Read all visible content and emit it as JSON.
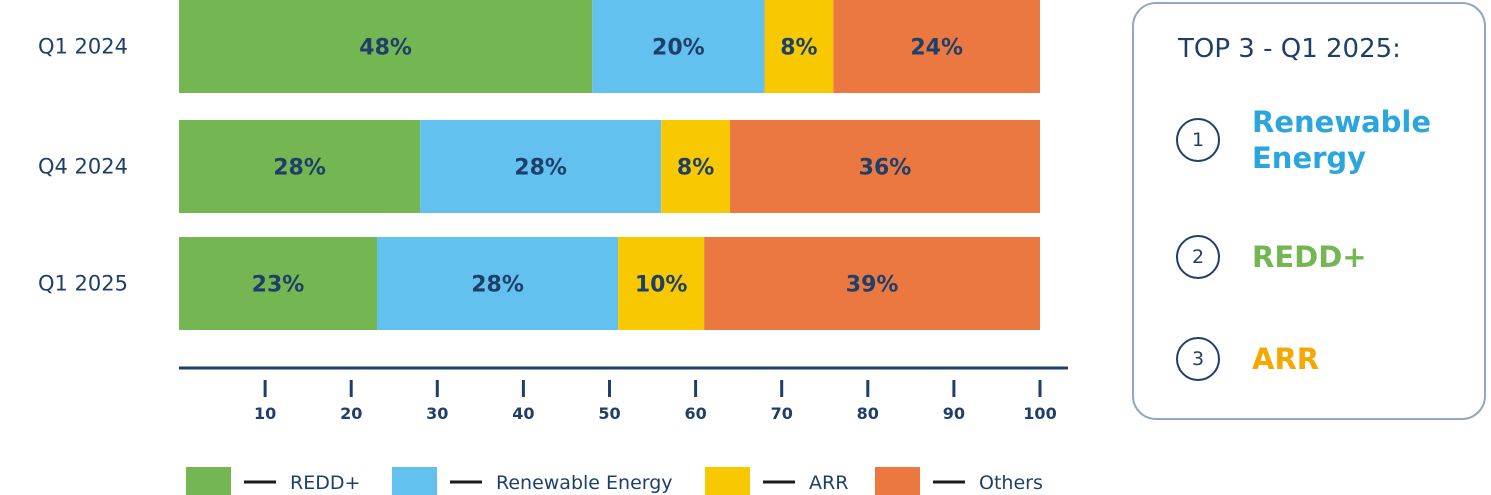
{
  "chart_data": {
    "type": "bar",
    "orientation": "horizontal",
    "stacked": true,
    "categories": [
      "Q1 2024",
      "Q4 2024",
      "Q1 2025"
    ],
    "series": [
      {
        "name": "REDD+",
        "values": [
          48,
          28,
          23
        ],
        "color": "#74b752"
      },
      {
        "name": "Renewable Energy",
        "values": [
          20,
          28,
          28
        ],
        "color": "#62c1ee"
      },
      {
        "name": "ARR",
        "values": [
          8,
          8,
          10
        ],
        "color": "#f8c800"
      },
      {
        "name": "Others",
        "values": [
          24,
          36,
          39
        ],
        "color": "#ea7840"
      }
    ],
    "xticks": [
      10,
      20,
      30,
      40,
      50,
      60,
      70,
      80,
      90,
      100
    ],
    "xlim": [
      0,
      100
    ],
    "grid": false,
    "legend_position": "bottom",
    "label_color": "#1f3f6b"
  },
  "top3": {
    "title": "TOP 3 - Q1 2025:",
    "items": [
      {
        "rank": "1",
        "name": "Renewable Energy",
        "color": "#2aa6dd"
      },
      {
        "rank": "2",
        "name": "REDD+",
        "color": "#74b752"
      },
      {
        "rank": "3",
        "name": "ARR",
        "color": "#f5a800"
      }
    ]
  }
}
